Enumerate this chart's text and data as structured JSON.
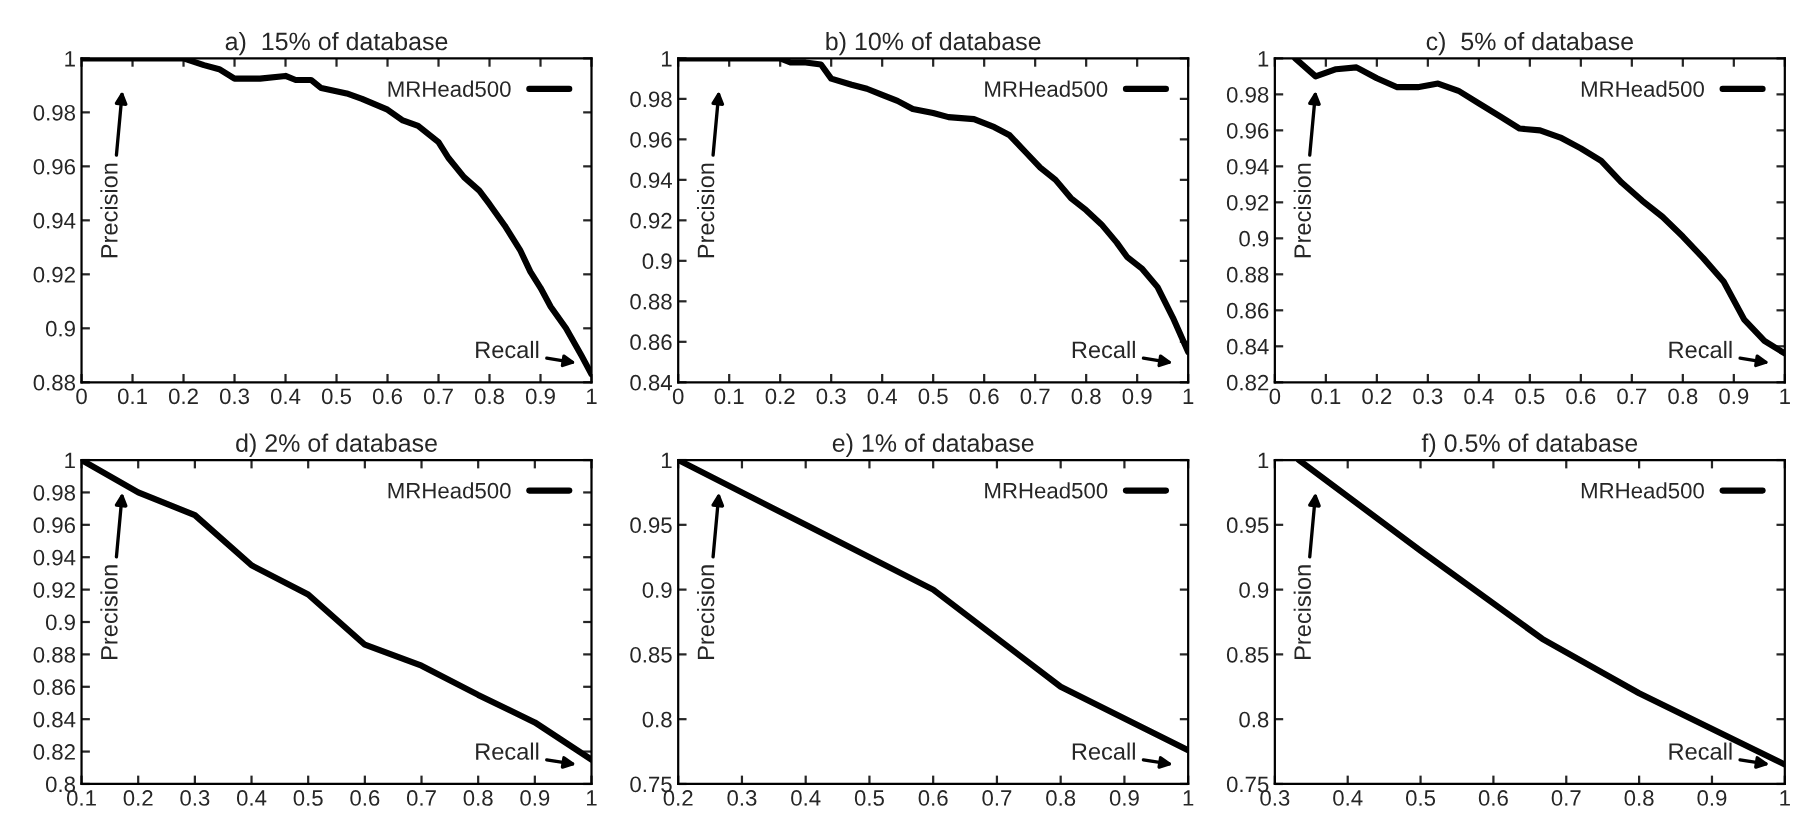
{
  "chart_data": [
    {
      "type": "line",
      "title": "a)  15% of database",
      "xlabel": "Recall",
      "ylabel": "Precision",
      "legend": "top right",
      "xlim": [
        0,
        1
      ],
      "xticks": [
        0,
        0.1,
        0.2,
        0.3,
        0.4,
        0.5,
        0.6,
        0.7,
        0.8,
        0.9,
        1
      ],
      "ylim": [
        0.88,
        1
      ],
      "yticks": [
        0.88,
        0.9,
        0.92,
        0.94,
        0.96,
        0.98,
        1
      ],
      "x": [
        0,
        0.2,
        0.24,
        0.27,
        0.3,
        0.35,
        0.4,
        0.42,
        0.45,
        0.47,
        0.52,
        0.55,
        0.6,
        0.63,
        0.66,
        0.7,
        0.72,
        0.75,
        0.78,
        0.8,
        0.83,
        0.86,
        0.88,
        0.9,
        0.92,
        0.95,
        0.98,
        1
      ],
      "series": [
        {
          "name": "MRHead500",
          "color": "#000000",
          "values": [
            1,
            1,
            0.9975,
            0.996,
            0.9925,
            0.9925,
            0.9935,
            0.992,
            0.992,
            0.989,
            0.987,
            0.985,
            0.981,
            0.977,
            0.975,
            0.969,
            0.963,
            0.956,
            0.951,
            0.946,
            0.938,
            0.929,
            0.921,
            0.915,
            0.908,
            0.9,
            0.89,
            0.883
          ]
        }
      ]
    },
    {
      "type": "line",
      "title": "b) 10% of database",
      "xlabel": "Recall",
      "ylabel": "Precision",
      "legend": "top right",
      "xlim": [
        0,
        1
      ],
      "xticks": [
        0,
        0.1,
        0.2,
        0.3,
        0.4,
        0.5,
        0.6,
        0.7,
        0.8,
        0.9,
        1
      ],
      "ylim": [
        0.84,
        1
      ],
      "yticks": [
        0.84,
        0.86,
        0.88,
        0.9,
        0.92,
        0.94,
        0.96,
        0.98,
        1
      ],
      "x": [
        0,
        0.2,
        0.22,
        0.25,
        0.28,
        0.3,
        0.34,
        0.37,
        0.4,
        0.43,
        0.46,
        0.5,
        0.53,
        0.58,
        0.62,
        0.65,
        0.68,
        0.71,
        0.74,
        0.77,
        0.8,
        0.83,
        0.86,
        0.88,
        0.91,
        0.94,
        0.97,
        1
      ],
      "series": [
        {
          "name": "MRHead500",
          "color": "#000000",
          "values": [
            1,
            1,
            0.998,
            0.998,
            0.997,
            0.99,
            0.987,
            0.985,
            0.982,
            0.979,
            0.975,
            0.973,
            0.971,
            0.97,
            0.966,
            0.962,
            0.954,
            0.946,
            0.94,
            0.931,
            0.925,
            0.918,
            0.909,
            0.902,
            0.896,
            0.887,
            0.872,
            0.855
          ]
        }
      ]
    },
    {
      "type": "line",
      "title": "c)  5% of database",
      "xlabel": "Recall",
      "ylabel": "Precision",
      "legend": "top right",
      "xlim": [
        0,
        1
      ],
      "xticks": [
        0,
        0.1,
        0.2,
        0.3,
        0.4,
        0.5,
        0.6,
        0.7,
        0.8,
        0.9,
        1
      ],
      "ylim": [
        0.82,
        1
      ],
      "yticks": [
        0.82,
        0.84,
        0.86,
        0.88,
        0.9,
        0.92,
        0.94,
        0.96,
        0.98,
        1
      ],
      "x": [
        0.04,
        0.08,
        0.12,
        0.16,
        0.2,
        0.24,
        0.28,
        0.32,
        0.36,
        0.4,
        0.44,
        0.48,
        0.52,
        0.56,
        0.6,
        0.64,
        0.68,
        0.72,
        0.76,
        0.8,
        0.84,
        0.88,
        0.92,
        0.96,
        1
      ],
      "series": [
        {
          "name": "MRHead500",
          "color": "#000000",
          "values": [
            1,
            0.99,
            0.994,
            0.995,
            0.989,
            0.984,
            0.984,
            0.986,
            0.982,
            0.975,
            0.968,
            0.961,
            0.96,
            0.956,
            0.95,
            0.943,
            0.931,
            0.921,
            0.912,
            0.901,
            0.889,
            0.876,
            0.855,
            0.843,
            0.836
          ]
        }
      ]
    },
    {
      "type": "line",
      "title": "d) 2% of database",
      "xlabel": "Recall",
      "ylabel": "Precision",
      "legend": "top right",
      "xlim": [
        0.1,
        1
      ],
      "xticks": [
        0.1,
        0.2,
        0.3,
        0.4,
        0.5,
        0.6,
        0.7,
        0.8,
        0.9,
        1
      ],
      "ylim": [
        0.8,
        1
      ],
      "yticks": [
        0.8,
        0.82,
        0.84,
        0.86,
        0.88,
        0.9,
        0.92,
        0.94,
        0.96,
        0.98,
        1
      ],
      "x": [
        0.1,
        0.2,
        0.3,
        0.4,
        0.5,
        0.6,
        0.7,
        0.8,
        0.9,
        1
      ],
      "series": [
        {
          "name": "MRHead500",
          "color": "#000000",
          "values": [
            1,
            0.98,
            0.966,
            0.935,
            0.917,
            0.886,
            0.873,
            0.855,
            0.838,
            0.815
          ]
        }
      ]
    },
    {
      "type": "line",
      "title": "e) 1% of database",
      "xlabel": "Recall",
      "ylabel": "Precision",
      "legend": "top right",
      "xlim": [
        0.2,
        1
      ],
      "xticks": [
        0.2,
        0.3,
        0.4,
        0.5,
        0.6,
        0.7,
        0.8,
        0.9,
        1
      ],
      "ylim": [
        0.75,
        1
      ],
      "yticks": [
        0.75,
        0.8,
        0.85,
        0.9,
        0.95,
        1
      ],
      "x": [
        0.2,
        0.4,
        0.6,
        0.8,
        1
      ],
      "series": [
        {
          "name": "MRHead500",
          "color": "#000000",
          "values": [
            1,
            0.95,
            0.9,
            0.825,
            0.776
          ]
        }
      ]
    },
    {
      "type": "line",
      "title": "f) 0.5% of database",
      "xlabel": "Recall",
      "ylabel": "Precision",
      "legend": "top right",
      "xlim": [
        0.3,
        1
      ],
      "xticks": [
        0.3,
        0.4,
        0.5,
        0.6,
        0.7,
        0.8,
        0.9,
        1
      ],
      "ylim": [
        0.75,
        1
      ],
      "yticks": [
        0.75,
        0.8,
        0.85,
        0.9,
        0.95,
        1
      ],
      "x": [
        0.333,
        0.5,
        0.667,
        0.8,
        1
      ],
      "series": [
        {
          "name": "MRHead500",
          "color": "#000000",
          "values": [
            1,
            0.93,
            0.862,
            0.82,
            0.765
          ]
        }
      ]
    }
  ]
}
